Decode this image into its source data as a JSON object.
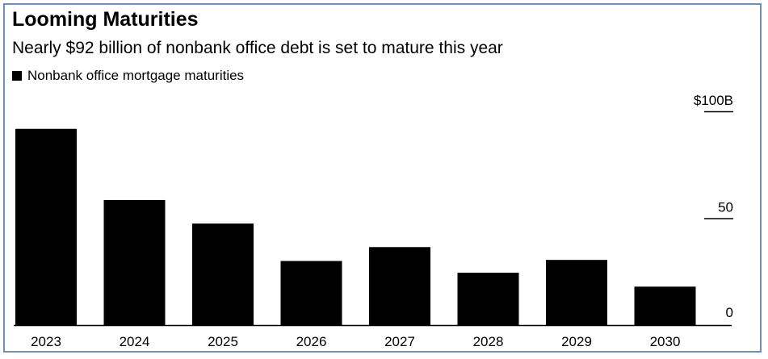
{
  "header": {
    "title": "Looming Maturities",
    "subtitle": "Nearly $92 billion of nonbank office debt is set to mature this year"
  },
  "legend": {
    "label": "Nonbank office mortgage maturities"
  },
  "colors": {
    "bar": "#000000",
    "frame": "#6f8fb5",
    "axis": "#000000"
  },
  "chart_data": {
    "type": "bar",
    "categories": [
      "2023",
      "2024",
      "2025",
      "2026",
      "2027",
      "2028",
      "2029",
      "2030"
    ],
    "series": [
      {
        "name": "Nonbank office mortgage maturities",
        "values": [
          91.8,
          58.5,
          47.5,
          30,
          36.5,
          24.5,
          30.5,
          18
        ]
      }
    ],
    "y_ticks": [
      {
        "value": 100,
        "label": "$100B"
      },
      {
        "value": 50,
        "label": "50"
      },
      {
        "value": 0,
        "label": "0"
      }
    ],
    "ylim": [
      0,
      100
    ],
    "y_axis_side": "right",
    "grid": false,
    "legend_position": "top-left"
  }
}
